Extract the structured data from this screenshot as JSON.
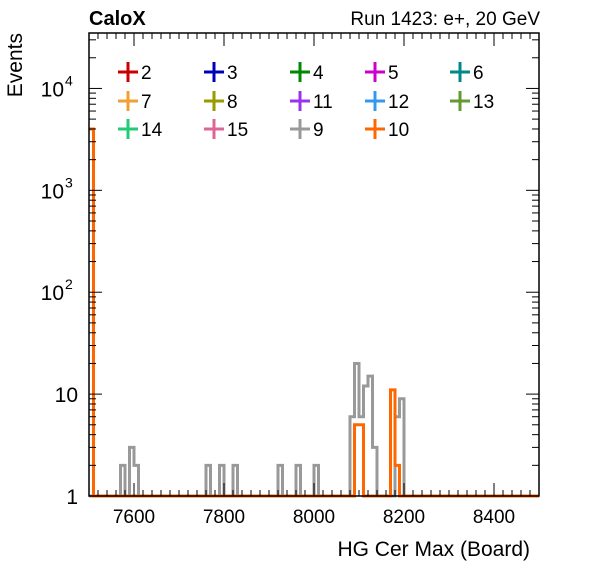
{
  "header": {
    "brand": "CaloX",
    "run_info": "Run 1423: e+, 20 GeV"
  },
  "chart_data": {
    "type": "histogram-step",
    "xlabel": "HG Cer Max (Board)",
    "ylabel": "Events",
    "xlim": [
      7500,
      8500
    ],
    "ylim": [
      1,
      35000
    ],
    "yscale": "log",
    "x_ticks": [
      7600,
      7800,
      8000,
      8200,
      8400
    ],
    "y_ticks": [
      {
        "value": 1,
        "base": "1",
        "exp": ""
      },
      {
        "value": 10,
        "base": "10",
        "exp": ""
      },
      {
        "value": 100,
        "base": "10",
        "exp": "2"
      },
      {
        "value": 1000,
        "base": "10",
        "exp": "3"
      },
      {
        "value": 10000,
        "base": "10",
        "exp": "4"
      }
    ],
    "bin_width": 10,
    "legend": [
      {
        "name": "2",
        "color": "#cc0000"
      },
      {
        "name": "3",
        "color": "#0000bb"
      },
      {
        "name": "4",
        "color": "#008800"
      },
      {
        "name": "5",
        "color": "#cc00cc"
      },
      {
        "name": "6",
        "color": "#008888"
      },
      {
        "name": "7",
        "color": "#f0a030"
      },
      {
        "name": "8",
        "color": "#999900"
      },
      {
        "name": "11",
        "color": "#9933ee"
      },
      {
        "name": "12",
        "color": "#3399ee"
      },
      {
        "name": "13",
        "color": "#669933"
      },
      {
        "name": "14",
        "color": "#22cc77"
      },
      {
        "name": "15",
        "color": "#dd6699"
      },
      {
        "name": "9",
        "color": "#999999"
      },
      {
        "name": "10",
        "color": "#ff6600"
      }
    ],
    "series": [
      {
        "name": "9",
        "color": "#999999",
        "bins": [
          [
            7570,
            2
          ],
          [
            7580,
            1
          ],
          [
            7590,
            3
          ],
          [
            7600,
            2
          ],
          [
            7760,
            2
          ],
          [
            7790,
            2
          ],
          [
            7820,
            2
          ],
          [
            7920,
            2
          ],
          [
            7960,
            2
          ],
          [
            8000,
            2
          ],
          [
            8080,
            6
          ],
          [
            8090,
            20
          ],
          [
            8100,
            6
          ],
          [
            8110,
            12
          ],
          [
            8120,
            15
          ],
          [
            8130,
            3
          ],
          [
            8180,
            6
          ],
          [
            8190,
            9
          ]
        ]
      },
      {
        "name": "10",
        "color": "#ff6600",
        "bins": [
          [
            7500,
            4000
          ],
          [
            8090,
            5
          ],
          [
            8100,
            5
          ],
          [
            8170,
            11
          ],
          [
            8180,
            2
          ]
        ]
      }
    ]
  }
}
